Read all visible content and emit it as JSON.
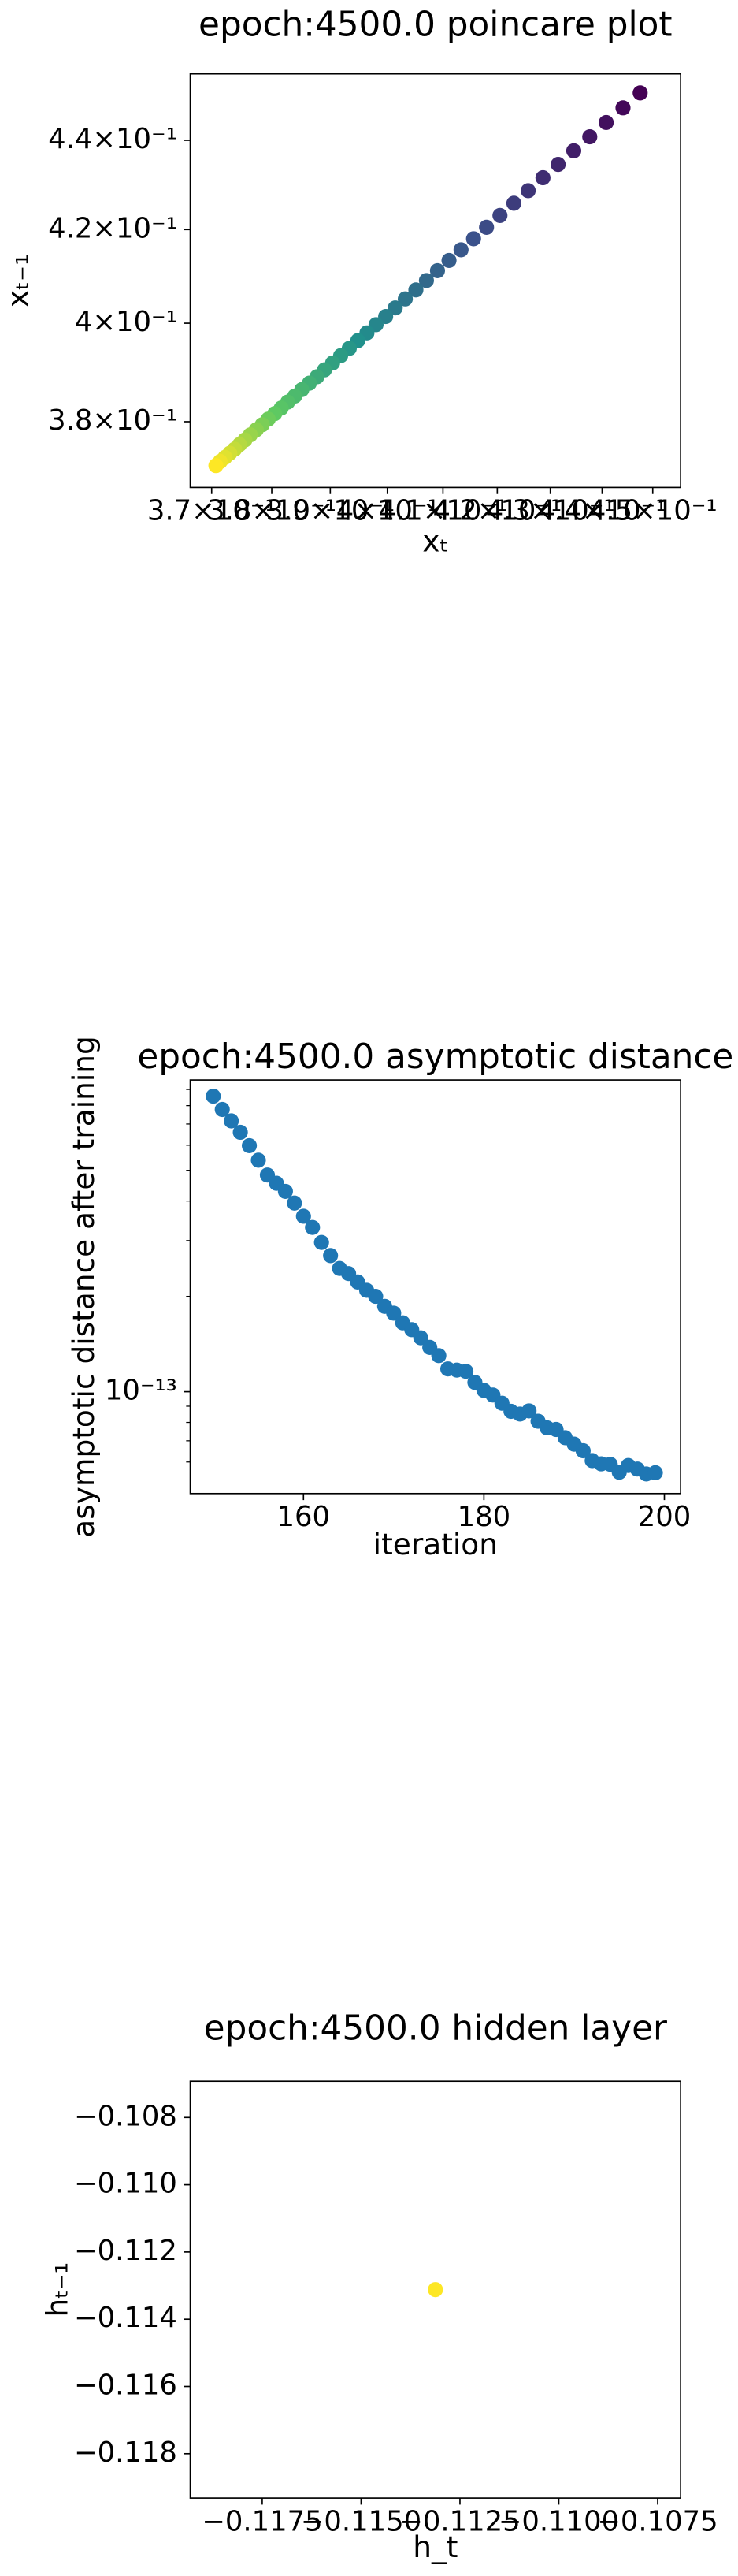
{
  "chart_data": [
    {
      "type": "scatter",
      "title": "epoch:4500.0 poincare plot",
      "x_label": "xₜ",
      "y_label": "xₜ₋₁",
      "x_log": true,
      "y_log": true,
      "colormap": "viridis",
      "x": [
        0.4475,
        0.4441,
        0.4408,
        0.4376,
        0.4345,
        0.4315,
        0.4286,
        0.4258,
        0.4231,
        0.4205,
        0.418,
        0.4156,
        0.4133,
        0.4111,
        0.409,
        0.407,
        0.4051,
        0.4032,
        0.4014,
        0.3997,
        0.398,
        0.3964,
        0.3948,
        0.3933,
        0.3918,
        0.3904,
        0.389,
        0.3877,
        0.3864,
        0.3851,
        0.3839,
        0.3827,
        0.3816,
        0.3805,
        0.3794,
        0.3784,
        0.3774,
        0.3764,
        0.3755,
        0.3746,
        0.3738,
        0.373,
        0.3722,
        0.3714,
        0.3707
      ],
      "y": [
        0.451,
        0.4475,
        0.4441,
        0.4408,
        0.4376,
        0.4345,
        0.4315,
        0.4286,
        0.4258,
        0.4231,
        0.4205,
        0.418,
        0.4156,
        0.4133,
        0.4111,
        0.409,
        0.407,
        0.4051,
        0.4032,
        0.4014,
        0.3997,
        0.398,
        0.3964,
        0.3948,
        0.3933,
        0.3918,
        0.3904,
        0.389,
        0.3877,
        0.3864,
        0.3851,
        0.3839,
        0.3827,
        0.3816,
        0.3805,
        0.3794,
        0.3784,
        0.3774,
        0.3764,
        0.3755,
        0.3746,
        0.3738,
        0.373,
        0.3722,
        0.3714
      ],
      "xlim": [
        0.3665,
        0.4556
      ],
      "ylim": [
        0.3672,
        0.4555
      ],
      "xticks": [
        {
          "value": 0.37,
          "label": "3.7×10⁻¹"
        },
        {
          "value": 0.38,
          "label": "3.8×10⁻¹"
        },
        {
          "value": 0.39,
          "label": "3.9×10⁻¹"
        },
        {
          "value": 0.4,
          "label": "4×10⁻¹"
        },
        {
          "value": 0.41,
          "label": "4.1×10⁻¹"
        },
        {
          "value": 0.42,
          "label": "4.2×10⁻¹"
        },
        {
          "value": 0.43,
          "label": "4.3×10⁻¹"
        },
        {
          "value": 0.44,
          "label": "4.4×10⁻¹"
        },
        {
          "value": 0.45,
          "label": "4.5×10⁻¹"
        }
      ],
      "yticks": [
        {
          "value": 0.38,
          "label": "3.8×10⁻¹"
        },
        {
          "value": 0.4,
          "label": "4×10⁻¹"
        },
        {
          "value": 0.42,
          "label": "4.2×10⁻¹"
        },
        {
          "value": 0.44,
          "label": "4.4×10⁻¹"
        }
      ]
    },
    {
      "type": "scatter",
      "title": "epoch:4500.0 asymptotic distance",
      "x_label": "iteration",
      "y_label": "asymptotic distance after training",
      "y_log": true,
      "color": "#1f77b4",
      "x": [
        150,
        151,
        152,
        153,
        154,
        155,
        156,
        157,
        158,
        159,
        160,
        161,
        162,
        163,
        164,
        165,
        166,
        167,
        168,
        169,
        170,
        171,
        172,
        173,
        174,
        175,
        176,
        177,
        178,
        179,
        180,
        181,
        182,
        183,
        184,
        185,
        186,
        187,
        188,
        189,
        190,
        191,
        192,
        193,
        194,
        195,
        196,
        197,
        198,
        199
      ],
      "y": [
        8.57e-13,
        7.78e-13,
        7.16e-13,
        6.59e-13,
        5.98e-13,
        5.38e-13,
        4.83e-13,
        4.55e-13,
        4.29e-13,
        3.94e-13,
        3.58e-13,
        3.3e-13,
        2.96e-13,
        2.69e-13,
        2.45e-13,
        2.36e-13,
        2.22e-13,
        2.09e-13,
        2e-13,
        1.86e-13,
        1.77e-13,
        1.65e-13,
        1.57e-13,
        1.48e-13,
        1.38e-13,
        1.3e-13,
        1.18e-13,
        1.17e-13,
        1.16e-13,
        1.07e-13,
        1.01e-13,
        9.76e-14,
        9.2e-14,
        8.67e-14,
        8.5e-14,
        8.7e-14,
        8.07e-14,
        7.69e-14,
        7.6e-14,
        7.16e-14,
        6.83e-14,
        6.51e-14,
        6.06e-14,
        5.92e-14,
        5.9e-14,
        5.57e-14,
        5.85e-14,
        5.7e-14,
        5.5e-14,
        5.55e-14
      ],
      "xlim": [
        147.45,
        201.8
      ],
      "ylim": [
        4.77e-14,
        9.64e-13
      ],
      "xticks": [
        160,
        180,
        200
      ],
      "yticks": [
        {
          "value": 1e-13,
          "label": "10⁻¹³"
        }
      ],
      "yminorticks": [
        6e-14,
        7e-14,
        8e-14,
        9e-14,
        2e-13,
        3e-13,
        4e-13,
        5e-13,
        6e-13,
        7e-13,
        8e-13,
        9e-13
      ]
    },
    {
      "type": "scatter",
      "title": "epoch:4500.0 hidden layer",
      "x_label": "h_t",
      "y_label": "hₜ₋₁",
      "color": "#fde725",
      "x": [
        -0.11312
      ],
      "y": [
        -0.11312
      ],
      "xlim": [
        -0.11932,
        -0.10692
      ],
      "ylim": [
        -0.11932,
        -0.10692
      ],
      "xticks": [
        {
          "value": -0.1175,
          "label": "−0.1175"
        },
        {
          "value": -0.115,
          "label": "−0.1150"
        },
        {
          "value": -0.1125,
          "label": "−0.1125"
        },
        {
          "value": -0.11,
          "label": "−0.1100"
        },
        {
          "value": -0.1075,
          "label": "−0.1075"
        }
      ],
      "yticks": [
        {
          "value": -0.108,
          "label": "−0.108"
        },
        {
          "value": -0.11,
          "label": "−0.110"
        },
        {
          "value": -0.112,
          "label": "−0.112"
        },
        {
          "value": -0.114,
          "label": "−0.114"
        },
        {
          "value": -0.116,
          "label": "−0.116"
        },
        {
          "value": -0.118,
          "label": "−0.118"
        }
      ]
    }
  ]
}
